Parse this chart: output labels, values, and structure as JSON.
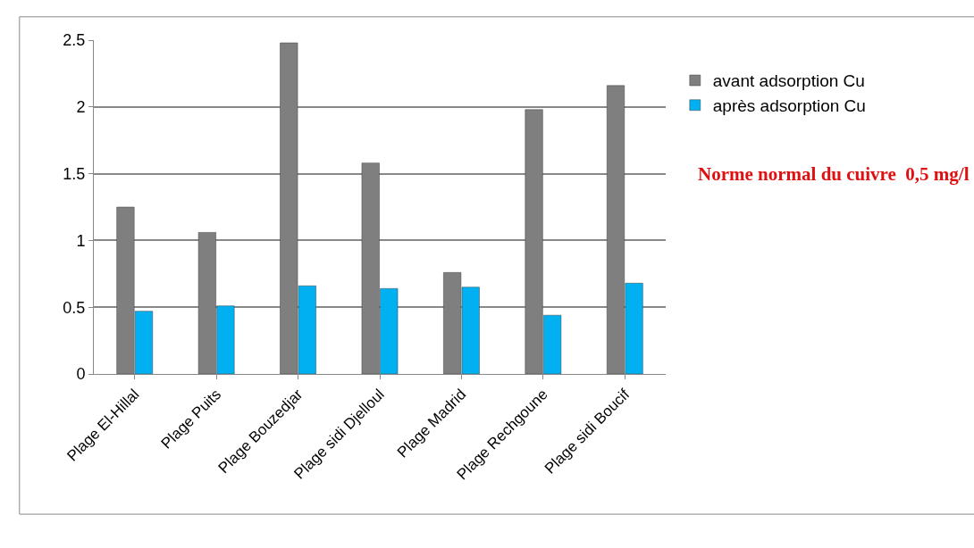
{
  "chart_data": {
    "type": "bar",
    "categories": [
      "Plage El-Hillal",
      "Plage Puits",
      "Plage Bouzedjar",
      "Plage sidi Djelloul",
      "Plage Madrid",
      "Plage Rechgoune",
      "Plage sidi Boucif"
    ],
    "series": [
      {
        "name": "avant adsorption Cu",
        "color": "#7f7f7f",
        "values": [
          1.25,
          1.06,
          2.48,
          1.58,
          0.76,
          1.98,
          2.16
        ]
      },
      {
        "name": "après adsorption Cu",
        "color": "#00b0f0",
        "values": [
          0.47,
          0.51,
          0.66,
          0.64,
          0.65,
          0.44,
          0.68
        ]
      }
    ],
    "ylim": [
      0,
      2.5
    ],
    "yticks": [
      0,
      0.5,
      1,
      1.5,
      2,
      2.5
    ],
    "grid": "y",
    "legend": "right",
    "annotations": [
      "Norme normal du cuivre  0,5 mg/l"
    ]
  }
}
